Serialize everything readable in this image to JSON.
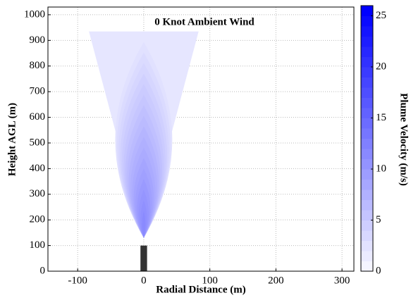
{
  "chart_data": {
    "type": "plume",
    "title": "0 Knot Ambient Wind",
    "xlabel": "Radial Distance (m)",
    "ylabel": "Height AGL (m)",
    "colorbar_label": "Plume Velocity (m/s)",
    "xlim": [
      -145,
      318
    ],
    "ylim": [
      0,
      1030
    ],
    "xticks": [
      -100,
      0,
      100,
      200,
      300
    ],
    "yticks": [
      0,
      100,
      200,
      300,
      400,
      500,
      600,
      700,
      800,
      900,
      1000
    ],
    "clim": [
      0,
      26
    ],
    "cticks": [
      0,
      5,
      10,
      15,
      20,
      25
    ],
    "level_step": 1,
    "cmap": [
      "#ffffff",
      "#0000ff"
    ],
    "grid": true,
    "tower": {
      "height": 100,
      "width": 10,
      "color": "#333333"
    },
    "plume": {
      "base": 130,
      "top": 935,
      "top_halfwidth": 83,
      "peak_velocity": 18
    }
  }
}
